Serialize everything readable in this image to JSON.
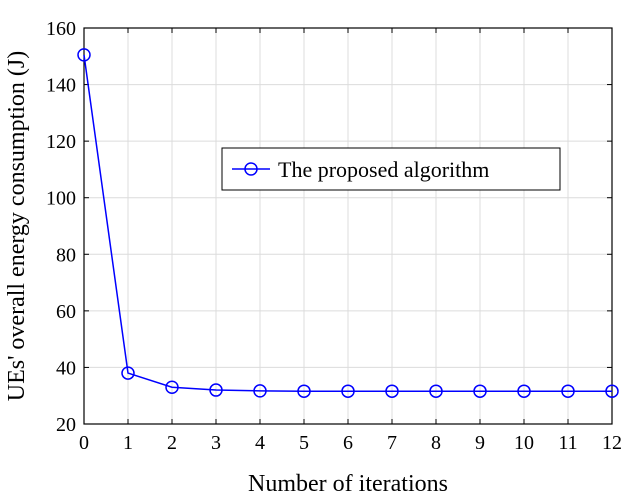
{
  "chart_data": {
    "type": "line",
    "xlabel": "Number of iterations",
    "ylabel": "UEs' overall energy consumption (J)",
    "xlim": [
      0,
      12
    ],
    "ylim": [
      20,
      160
    ],
    "xticks": [
      "0",
      "1",
      "2",
      "3",
      "4",
      "5",
      "6",
      "7",
      "8",
      "9",
      "10",
      "11",
      "12"
    ],
    "yticks": [
      "20",
      "40",
      "60",
      "80",
      "100",
      "120",
      "140",
      "160"
    ],
    "grid": true,
    "legend_position": "upper-middle",
    "series": [
      {
        "name": "The proposed algorithm",
        "color": "#0000ff",
        "marker": "circle",
        "x": [
          0,
          1,
          2,
          3,
          4,
          5,
          6,
          7,
          8,
          9,
          10,
          11,
          12
        ],
        "y": [
          150.5,
          38,
          33,
          32,
          31.7,
          31.6,
          31.6,
          31.6,
          31.6,
          31.6,
          31.6,
          31.6,
          31.6
        ]
      }
    ]
  }
}
